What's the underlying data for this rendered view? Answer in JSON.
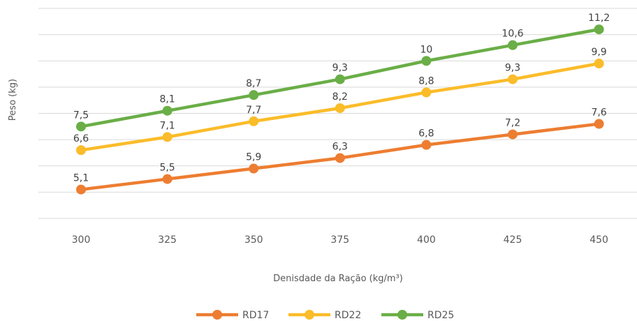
{
  "chart_data": {
    "type": "line",
    "title": "",
    "xlabel": "Denisdade da Ração (kg/m³)",
    "ylabel": "Peso (kg)",
    "categories": [
      "300",
      "325",
      "350",
      "375",
      "400",
      "425",
      "450"
    ],
    "ylim": [
      4,
      12
    ],
    "grid": true,
    "y_tick_labels_shown": false,
    "legend_position": "bottom",
    "series": [
      {
        "name": "RD17",
        "color": "#ED7D31",
        "values": [
          5.1,
          5.5,
          5.9,
          6.3,
          6.8,
          7.2,
          7.6
        ],
        "labels": [
          "5,1",
          "5,5",
          "5,9",
          "6,3",
          "6,8",
          "7,2",
          "7,6"
        ]
      },
      {
        "name": "RD22",
        "color": "#FBBC2A",
        "values": [
          6.6,
          7.1,
          7.7,
          8.2,
          8.8,
          9.3,
          9.9
        ],
        "labels": [
          "6,6",
          "7,1",
          "7,7",
          "8,2",
          "8,8",
          "9,3",
          "9,9"
        ]
      },
      {
        "name": "RD25",
        "color": "#6AAE47",
        "values": [
          7.5,
          8.1,
          8.7,
          9.3,
          10.0,
          10.6,
          11.2
        ],
        "labels": [
          "7,5",
          "8,1",
          "8,7",
          "9,3",
          "10",
          "10,6",
          "11,2"
        ]
      }
    ]
  }
}
